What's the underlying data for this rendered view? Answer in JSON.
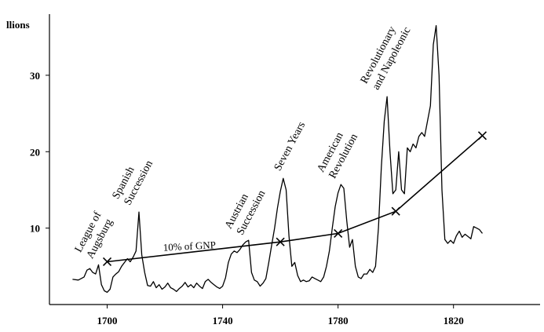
{
  "chart_data": {
    "type": "line",
    "title": "",
    "xlabel": "",
    "ylabel": "llions",
    "xlim": [
      1680,
      1850
    ],
    "ylim": [
      0,
      38
    ],
    "x_ticks": [
      1700,
      1740,
      1780,
      1820
    ],
    "y_ticks": [
      10,
      20,
      30
    ],
    "grid": false,
    "series": [
      {
        "name": "",
        "points": [
          [
            1688,
            3.3
          ],
          [
            1690,
            3.2
          ],
          [
            1692,
            3.6
          ],
          [
            1693,
            4.5
          ],
          [
            1694,
            4.7
          ],
          [
            1695,
            4.2
          ],
          [
            1696,
            4.0
          ],
          [
            1697,
            5.2
          ],
          [
            1698,
            2.6
          ],
          [
            1699,
            1.8
          ],
          [
            1700,
            1.6
          ],
          [
            1701,
            2.0
          ],
          [
            1702,
            3.6
          ],
          [
            1703,
            4.0
          ],
          [
            1704,
            4.3
          ],
          [
            1705,
            5.0
          ],
          [
            1706,
            5.5
          ],
          [
            1707,
            6.0
          ],
          [
            1708,
            5.6
          ],
          [
            1709,
            6.2
          ],
          [
            1710,
            7.0
          ],
          [
            1711,
            12.1
          ],
          [
            1712,
            6.5
          ],
          [
            1713,
            4.2
          ],
          [
            1714,
            2.5
          ],
          [
            1715,
            2.4
          ],
          [
            1716,
            3.0
          ],
          [
            1717,
            2.2
          ],
          [
            1718,
            2.6
          ],
          [
            1719,
            2.0
          ],
          [
            1720,
            2.3
          ],
          [
            1721,
            2.8
          ],
          [
            1722,
            2.2
          ],
          [
            1723,
            2.0
          ],
          [
            1724,
            1.7
          ],
          [
            1725,
            2.1
          ],
          [
            1726,
            2.4
          ],
          [
            1727,
            2.9
          ],
          [
            1728,
            2.3
          ],
          [
            1729,
            2.6
          ],
          [
            1730,
            2.2
          ],
          [
            1731,
            2.8
          ],
          [
            1732,
            2.4
          ],
          [
            1733,
            2.1
          ],
          [
            1734,
            3.0
          ],
          [
            1735,
            3.3
          ],
          [
            1736,
            2.9
          ],
          [
            1737,
            2.6
          ],
          [
            1738,
            2.3
          ],
          [
            1739,
            2.1
          ],
          [
            1740,
            2.4
          ],
          [
            1741,
            3.5
          ],
          [
            1742,
            5.5
          ],
          [
            1743,
            6.6
          ],
          [
            1744,
            7.0
          ],
          [
            1745,
            6.8
          ],
          [
            1746,
            7.2
          ],
          [
            1747,
            7.8
          ],
          [
            1748,
            8.2
          ],
          [
            1749,
            8.4
          ],
          [
            1750,
            4.2
          ],
          [
            1751,
            3.2
          ],
          [
            1752,
            3.0
          ],
          [
            1753,
            2.4
          ],
          [
            1754,
            2.8
          ],
          [
            1755,
            3.4
          ],
          [
            1756,
            5.5
          ],
          [
            1757,
            7.8
          ],
          [
            1758,
            10.0
          ],
          [
            1759,
            12.6
          ],
          [
            1760,
            14.8
          ],
          [
            1761,
            16.5
          ],
          [
            1762,
            15.0
          ],
          [
            1763,
            9.0
          ],
          [
            1764,
            5.0
          ],
          [
            1765,
            5.5
          ],
          [
            1766,
            3.8
          ],
          [
            1767,
            3.0
          ],
          [
            1768,
            3.2
          ],
          [
            1769,
            3.0
          ],
          [
            1770,
            3.1
          ],
          [
            1771,
            3.6
          ],
          [
            1772,
            3.4
          ],
          [
            1773,
            3.2
          ],
          [
            1774,
            3.0
          ],
          [
            1775,
            3.6
          ],
          [
            1776,
            5.0
          ],
          [
            1777,
            7.0
          ],
          [
            1778,
            10.0
          ],
          [
            1779,
            12.8
          ],
          [
            1780,
            14.6
          ],
          [
            1781,
            15.7
          ],
          [
            1782,
            15.2
          ],
          [
            1783,
            11.0
          ],
          [
            1784,
            7.5
          ],
          [
            1785,
            8.5
          ],
          [
            1786,
            5.0
          ],
          [
            1787,
            3.6
          ],
          [
            1788,
            3.4
          ],
          [
            1789,
            4.0
          ],
          [
            1790,
            4.0
          ],
          [
            1791,
            4.6
          ],
          [
            1792,
            4.2
          ],
          [
            1793,
            5.0
          ],
          [
            1794,
            10.0
          ],
          [
            1795,
            18.0
          ],
          [
            1796,
            24.0
          ],
          [
            1797,
            27.2
          ],
          [
            1798,
            20.0
          ],
          [
            1799,
            14.5
          ],
          [
            1800,
            15.0
          ],
          [
            1801,
            20.0
          ],
          [
            1802,
            15.0
          ],
          [
            1803,
            14.5
          ],
          [
            1804,
            20.5
          ],
          [
            1805,
            20.0
          ],
          [
            1806,
            21.0
          ],
          [
            1807,
            20.5
          ],
          [
            1808,
            22.0
          ],
          [
            1809,
            22.5
          ],
          [
            1810,
            22.0
          ],
          [
            1811,
            24.0
          ],
          [
            1812,
            26.0
          ],
          [
            1813,
            34.0
          ],
          [
            1814,
            36.5
          ],
          [
            1815,
            30.0
          ],
          [
            1816,
            15.0
          ],
          [
            1817,
            8.5
          ],
          [
            1818,
            8.0
          ],
          [
            1819,
            8.4
          ],
          [
            1820,
            8.0
          ],
          [
            1821,
            9.0
          ],
          [
            1822,
            9.6
          ],
          [
            1823,
            8.8
          ],
          [
            1824,
            9.2
          ],
          [
            1825,
            8.9
          ],
          [
            1826,
            8.6
          ],
          [
            1827,
            10.2
          ],
          [
            1828,
            10.0
          ],
          [
            1829,
            9.8
          ],
          [
            1830,
            9.3
          ]
        ]
      },
      {
        "name": "10% of GNP",
        "points": [
          [
            1700,
            5.6
          ],
          [
            1760,
            8.2
          ],
          [
            1780,
            9.3
          ],
          [
            1800,
            12.2
          ],
          [
            1830,
            22.1
          ]
        ]
      }
    ],
    "annotations": [
      {
        "lines": [
          "League of",
          "Augsburg"
        ],
        "x": 1697,
        "y": 5.5
      },
      {
        "lines": [
          "Spanish",
          "Succession"
        ],
        "x": 1710,
        "y": 12.5
      },
      {
        "lines": [
          "Austrian",
          "Succession"
        ],
        "x": 1749,
        "y": 8.6
      },
      {
        "lines": [
          "Seven Years"
        ],
        "x": 1762,
        "y": 17.0
      },
      {
        "lines": [
          "American",
          "Revolution"
        ],
        "x": 1781,
        "y": 16.0
      },
      {
        "lines": [
          "Revolutionary",
          "and Napoleonic"
        ],
        "x": 1796,
        "y": 27.6
      }
    ]
  }
}
